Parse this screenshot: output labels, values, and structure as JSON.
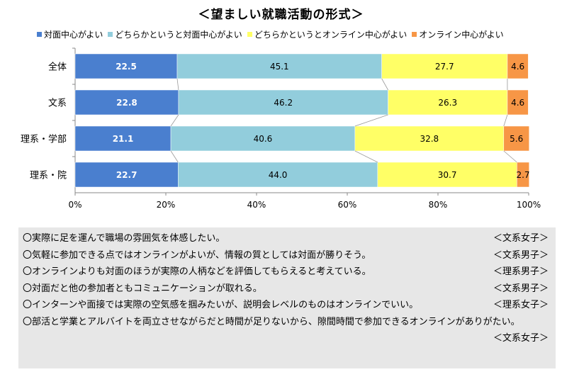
{
  "title": "＜望ましい就職活動の形式＞",
  "chart_data": {
    "type": "bar",
    "orientation": "horizontal",
    "stacked": true,
    "percent": true,
    "categories": [
      "全体",
      "文系",
      "理系・学部",
      "理系・院"
    ],
    "series": [
      {
        "name": "対面中心がよい",
        "color": "#4a7fcf",
        "values": [
          22.5,
          22.8,
          21.1,
          22.7
        ],
        "labels": [
          "22.5",
          "22.8",
          "21.1",
          "22.7"
        ]
      },
      {
        "name": "どちらかというと対面中心がよい",
        "color": "#92cddc",
        "values": [
          45.1,
          46.2,
          40.6,
          44.0
        ],
        "labels": [
          "45.1",
          "46.2",
          "40.6",
          "44.0"
        ]
      },
      {
        "name": "どちらかというとオンライン中心がよい",
        "color": "#ffff66",
        "values": [
          27.7,
          26.3,
          32.8,
          30.7
        ],
        "labels": [
          "27.7",
          "26.3",
          "32.8",
          "30.7"
        ]
      },
      {
        "name": "オンライン中心がよい",
        "color": "#f79646",
        "values": [
          4.6,
          4.6,
          5.6,
          2.7
        ],
        "labels": [
          "4.6",
          "4.6",
          "5.6",
          "2.7"
        ]
      }
    ],
    "xlim": [
      0,
      100
    ],
    "xticks": [
      "0%",
      "20%",
      "40%",
      "60%",
      "80%",
      "100%"
    ],
    "grid": true,
    "legend_position": "top"
  },
  "comments": [
    {
      "text": "〇実際に足を運んで職場の雰囲気を体感したい。",
      "tag": "＜文系女子＞"
    },
    {
      "text": "〇気軽に参加できる点ではオンラインがよいが、情報の質としては対面が勝りそう。",
      "tag": "＜文系男子＞"
    },
    {
      "text": "〇オンラインよりも対面のほうが実際の人柄などを評価してもらえると考えている。",
      "tag": "＜理系男子＞"
    },
    {
      "text": "〇対面だと他の参加者ともコミュニケーションが取れる。",
      "tag": "＜文系男子＞"
    },
    {
      "text": "〇インターンや面接では実際の空気感を掴みたいが、説明会レベルのものはオンラインでいい。",
      "tag": "＜理系女子＞"
    },
    {
      "text": "〇部活と学業とアルバイトを両立させながらだと時間が足りないから、隙間時間で参加できるオンラインがありがたい。",
      "tag": "＜文系女子＞"
    }
  ]
}
